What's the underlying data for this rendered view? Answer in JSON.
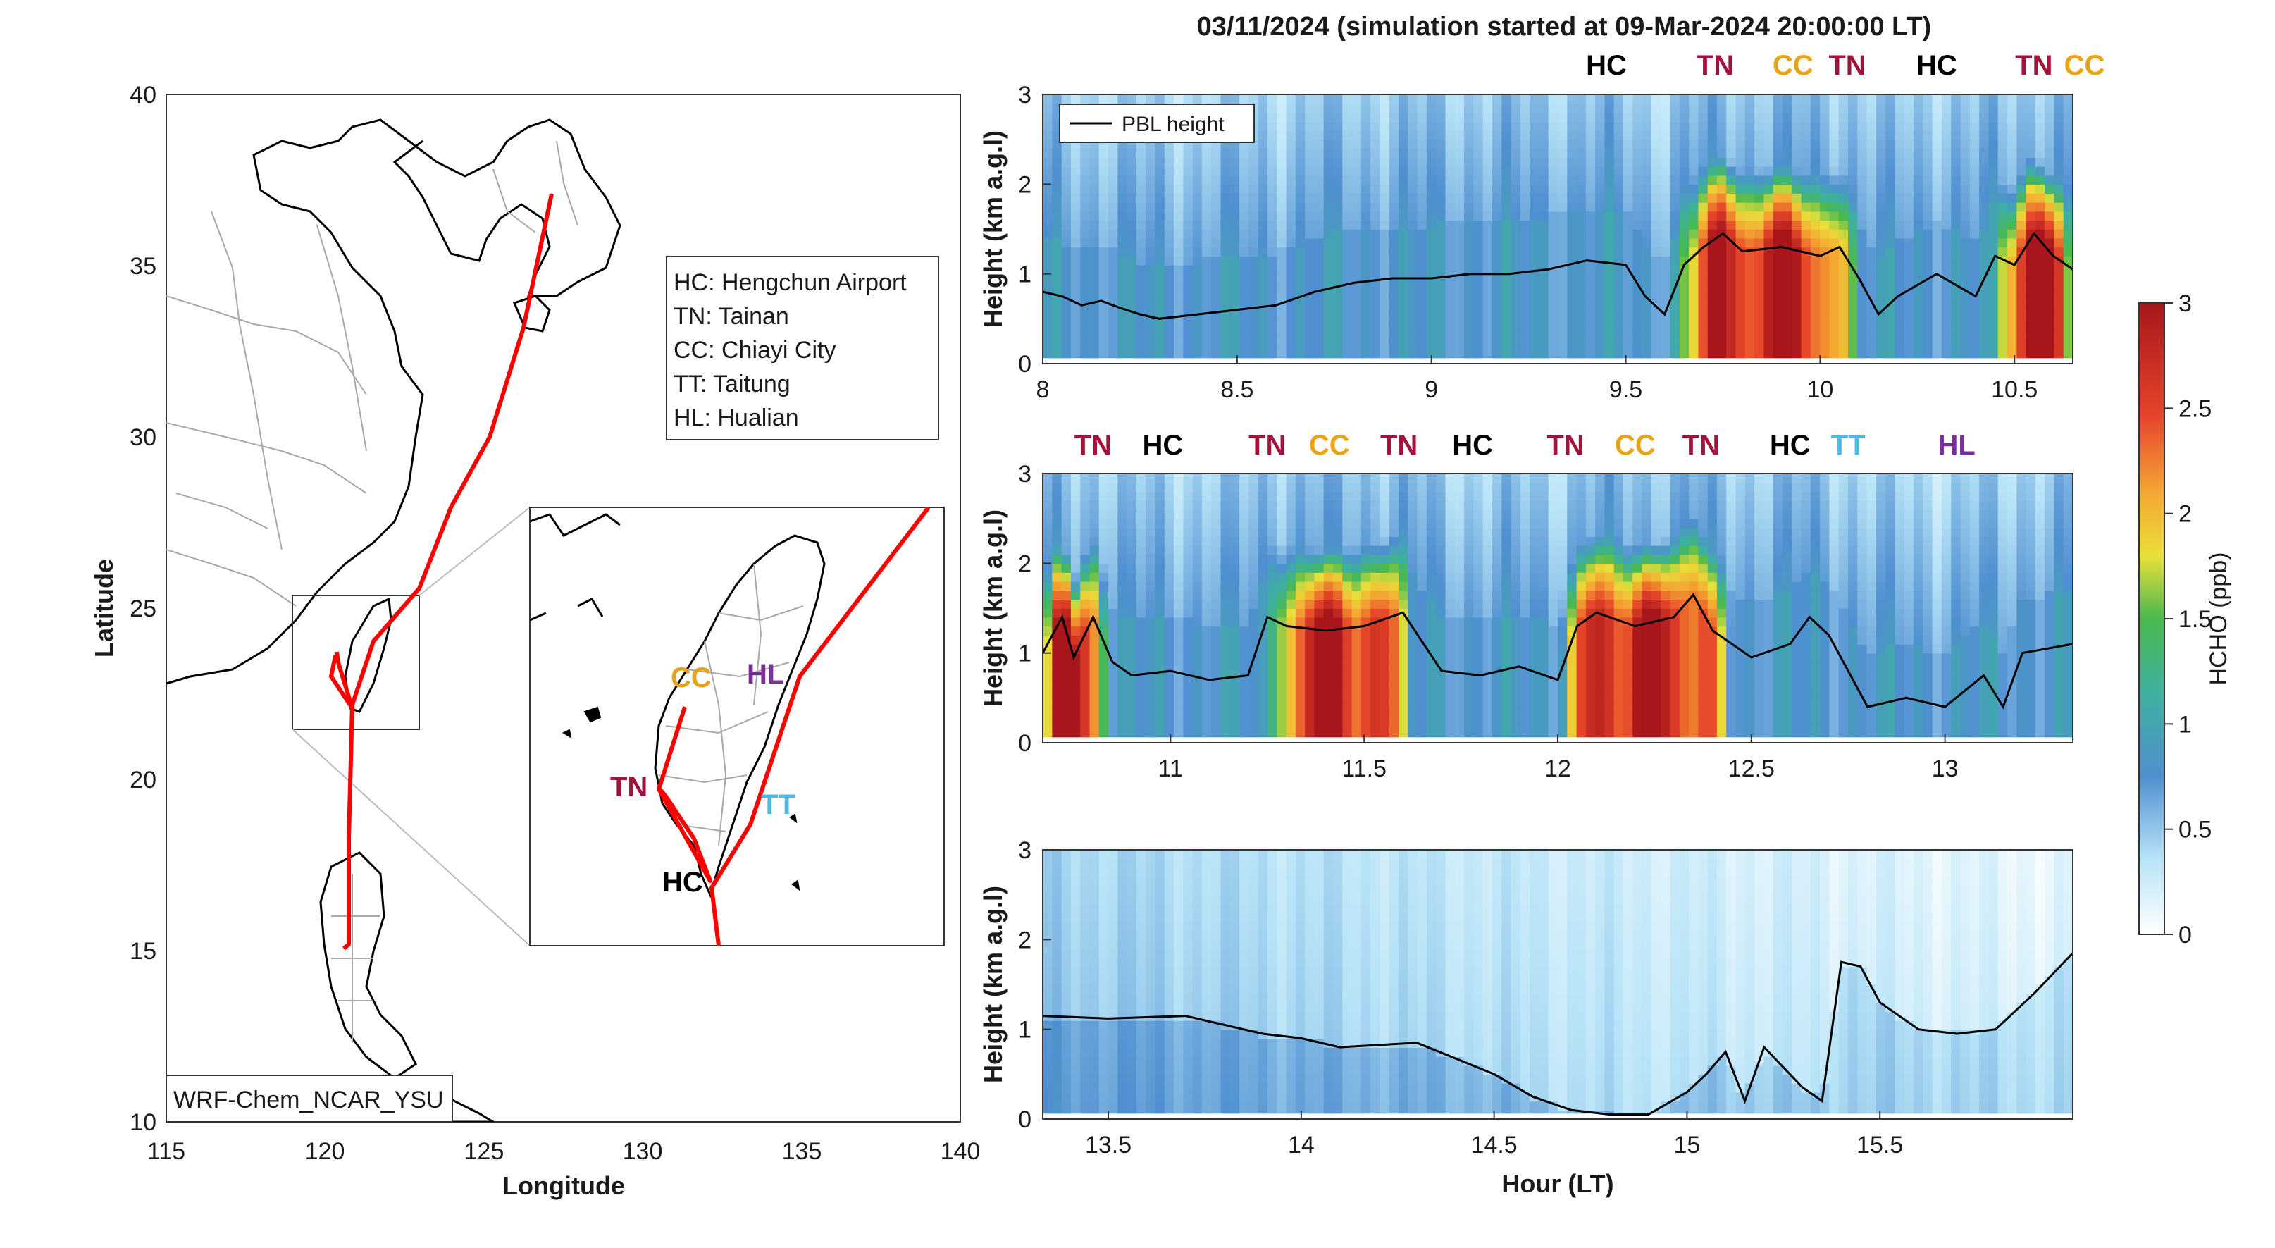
{
  "title": "03/11/2024 (simulation started at 09-Mar-2024 20:00:00 LT)",
  "colors": {
    "HC": "#000000",
    "TN": "#a3123a",
    "CC": "#e8a317",
    "TT": "#4db8e8",
    "HL": "#7a2e9a",
    "track": "#ff0000",
    "coast": "#000000",
    "borders": "#a8a8a8"
  },
  "map": {
    "xlabel": "Longitude",
    "ylabel": "Latitude",
    "xlim": [
      115,
      140
    ],
    "ylim": [
      10,
      40
    ],
    "xticks": [
      "115",
      "120",
      "125",
      "130",
      "135",
      "140"
    ],
    "yticks": [
      "10",
      "15",
      "20",
      "25",
      "30",
      "35",
      "40"
    ],
    "model_label": "WRF-Chem_NCAR_YSU",
    "legend": [
      "HC: Hengchun Airport",
      "TN: Tainan",
      "CC: Chiayi City",
      "TT: Taitung",
      "HL: Hualian"
    ],
    "inset_labels": {
      "CC": "CC",
      "HL": "HL",
      "TN": "TN",
      "TT": "TT",
      "HC": "HC"
    }
  },
  "chart_data": [
    {
      "type": "heatmap",
      "panel": 1,
      "variable": "HCHO (ppb)",
      "xlabel": "",
      "ylabel": "Height (km a.g.l)",
      "xlim": [
        8,
        10.65
      ],
      "ylim": [
        0,
        3
      ],
      "xticks": [
        "8",
        "8.5",
        "9",
        "9.5",
        "10",
        "10.5"
      ],
      "yticks": [
        "0",
        "1",
        "2",
        "3"
      ],
      "legend": "PBL height",
      "sites": [
        {
          "x": 9.45,
          "label": "HC"
        },
        {
          "x": 9.73,
          "label": "TN"
        },
        {
          "x": 9.93,
          "label": "CC"
        },
        {
          "x": 10.07,
          "label": "TN"
        },
        {
          "x": 10.3,
          "label": "HC"
        },
        {
          "x": 10.55,
          "label": "TN"
        },
        {
          "x": 10.68,
          "label": "CC"
        }
      ],
      "pbl": {
        "x": [
          8,
          8.05,
          8.1,
          8.15,
          8.2,
          8.25,
          8.3,
          8.4,
          8.5,
          8.6,
          8.7,
          8.8,
          8.9,
          9.0,
          9.1,
          9.2,
          9.3,
          9.4,
          9.5,
          9.55,
          9.6,
          9.65,
          9.7,
          9.75,
          9.8,
          9.9,
          10.0,
          10.05,
          10.1,
          10.15,
          10.2,
          10.3,
          10.4,
          10.45,
          10.5,
          10.55,
          10.6,
          10.65
        ],
        "y": [
          0.8,
          0.75,
          0.65,
          0.7,
          0.62,
          0.55,
          0.5,
          0.55,
          0.6,
          0.65,
          0.8,
          0.9,
          0.95,
          0.95,
          1.0,
          1.0,
          1.05,
          1.15,
          1.1,
          0.75,
          0.55,
          1.1,
          1.3,
          1.45,
          1.25,
          1.3,
          1.2,
          1.3,
          0.95,
          0.55,
          0.75,
          1.0,
          0.75,
          1.2,
          1.1,
          1.45,
          1.2,
          1.05
        ]
      },
      "hot_zones": [
        [
          9.62,
          10.1,
          1.0
        ],
        [
          10.45,
          10.65,
          1.0
        ]
      ]
    },
    {
      "type": "heatmap",
      "panel": 2,
      "variable": "HCHO (ppb)",
      "xlabel": "",
      "ylabel": "Height (km a.g.l)",
      "xlim": [
        10.67,
        13.33
      ],
      "ylim": [
        0,
        3
      ],
      "xticks": [
        "11",
        "11.5",
        "12",
        "12.5",
        "13"
      ],
      "yticks": [
        "0",
        "1",
        "2",
        "3"
      ],
      "sites": [
        {
          "x": 10.8,
          "label": "TN"
        },
        {
          "x": 10.98,
          "label": "HC"
        },
        {
          "x": 11.25,
          "label": "TN"
        },
        {
          "x": 11.41,
          "label": "CC"
        },
        {
          "x": 11.59,
          "label": "TN"
        },
        {
          "x": 11.78,
          "label": "HC"
        },
        {
          "x": 12.02,
          "label": "TN"
        },
        {
          "x": 12.2,
          "label": "CC"
        },
        {
          "x": 12.37,
          "label": "TN"
        },
        {
          "x": 12.6,
          "label": "HC"
        },
        {
          "x": 12.75,
          "label": "TT"
        },
        {
          "x": 13.03,
          "label": "HL"
        }
      ],
      "pbl": {
        "x": [
          10.67,
          10.72,
          10.75,
          10.8,
          10.85,
          10.9,
          11.0,
          11.1,
          11.2,
          11.25,
          11.3,
          11.4,
          11.5,
          11.6,
          11.7,
          11.8,
          11.9,
          12.0,
          12.05,
          12.1,
          12.2,
          12.3,
          12.35,
          12.4,
          12.5,
          12.6,
          12.65,
          12.7,
          12.8,
          12.9,
          13.0,
          13.1,
          13.15,
          13.2,
          13.33
        ],
        "y": [
          1.0,
          1.4,
          0.95,
          1.4,
          0.9,
          0.75,
          0.8,
          0.7,
          0.75,
          1.4,
          1.3,
          1.25,
          1.3,
          1.45,
          0.8,
          0.75,
          0.85,
          0.7,
          1.3,
          1.45,
          1.3,
          1.4,
          1.65,
          1.25,
          0.95,
          1.1,
          1.4,
          1.2,
          0.4,
          0.5,
          0.4,
          0.75,
          0.4,
          1.0,
          1.1
        ]
      },
      "hot_zones": [
        [
          10.67,
          10.84,
          1.0
        ],
        [
          11.25,
          11.62,
          1.0
        ],
        [
          12.0,
          12.45,
          1.0
        ]
      ]
    },
    {
      "type": "heatmap",
      "panel": 3,
      "variable": "HCHO (ppb)",
      "xlabel": "Hour (LT)",
      "ylabel": "Height (km a.g.l)",
      "xlim": [
        13.33,
        16.0
      ],
      "ylim": [
        0,
        3
      ],
      "xticks": [
        "13.5",
        "14",
        "14.5",
        "15",
        "15.5"
      ],
      "yticks": [
        "0",
        "1",
        "2",
        "3"
      ],
      "pbl": {
        "x": [
          13.33,
          13.5,
          13.7,
          13.8,
          13.9,
          14.0,
          14.1,
          14.3,
          14.5,
          14.6,
          14.7,
          14.8,
          14.9,
          15.0,
          15.05,
          15.1,
          15.15,
          15.2,
          15.3,
          15.35,
          15.4,
          15.45,
          15.5,
          15.6,
          15.7,
          15.8,
          15.9,
          16.0
        ],
        "y": [
          1.15,
          1.12,
          1.15,
          1.05,
          0.95,
          0.9,
          0.8,
          0.85,
          0.5,
          0.25,
          0.1,
          0.05,
          0.05,
          0.3,
          0.5,
          0.75,
          0.2,
          0.8,
          0.35,
          0.2,
          1.75,
          1.7,
          1.3,
          1.0,
          0.95,
          1.0,
          1.4,
          1.85
        ]
      },
      "hot_zones": []
    },
    {
      "type": "colorbar",
      "label": "HCHO (ppb)",
      "range": [
        0,
        3
      ],
      "ticks": [
        "0",
        "0.5",
        "1",
        "1.5",
        "2",
        "2.5",
        "3"
      ]
    }
  ]
}
